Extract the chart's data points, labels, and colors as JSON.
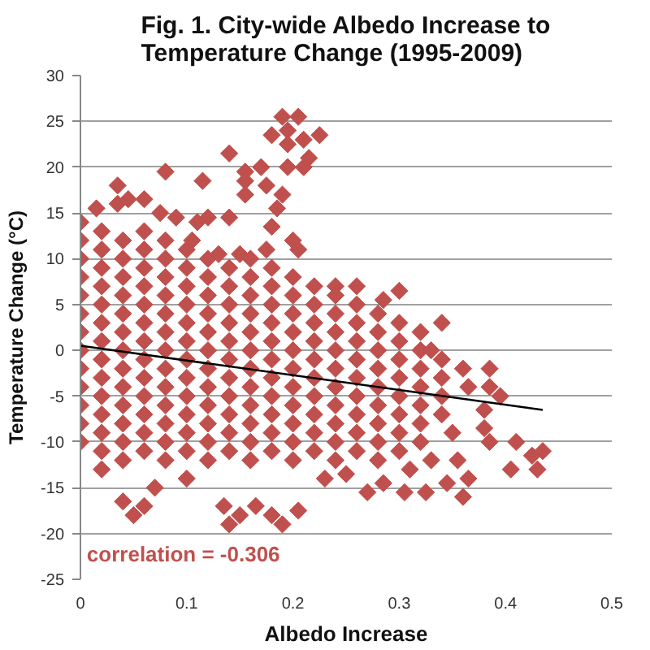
{
  "chart_data": {
    "type": "scatter",
    "title": "Fig. 1. City-wide Albedo Increase to Temperature Change (1995-2009)",
    "xlabel": "Albedo Increase",
    "ylabel": "Temperature Change (°C)",
    "annotations": [
      "correlation = -0.306"
    ],
    "xlim": [
      0,
      0.5
    ],
    "xticks": [
      0,
      0.1,
      0.2,
      0.3,
      0.4,
      0.5
    ],
    "ylim": [
      -25,
      30
    ],
    "yticks": [
      -25,
      -20,
      -15,
      -10,
      -5,
      0,
      5,
      10,
      15,
      20,
      25,
      30
    ],
    "grid": "y",
    "marker": "diamond",
    "series": [
      {
        "color": "#c0504d",
        "x": [
          0,
          0,
          0,
          0,
          0,
          0,
          0,
          0,
          0,
          0,
          0,
          0,
          0,
          0.02,
          0.02,
          0.02,
          0.02,
          0.02,
          0.02,
          0.02,
          0.02,
          0.02,
          0.02,
          0.02,
          0.02,
          0.02,
          0.04,
          0.04,
          0.04,
          0.04,
          0.04,
          0.04,
          0.04,
          0.04,
          0.04,
          0.04,
          0.04,
          0.04,
          0.04,
          0.06,
          0.06,
          0.06,
          0.06,
          0.06,
          0.06,
          0.06,
          0.06,
          0.06,
          0.06,
          0.06,
          0.06,
          0.06,
          0.08,
          0.08,
          0.08,
          0.08,
          0.08,
          0.08,
          0.08,
          0.08,
          0.08,
          0.08,
          0.08,
          0.08,
          0.08,
          0.1,
          0.1,
          0.1,
          0.1,
          0.1,
          0.1,
          0.1,
          0.1,
          0.1,
          0.1,
          0.1,
          0.1,
          0.12,
          0.12,
          0.12,
          0.12,
          0.12,
          0.12,
          0.12,
          0.12,
          0.12,
          0.12,
          0.12,
          0.12,
          0.14,
          0.14,
          0.14,
          0.14,
          0.14,
          0.14,
          0.14,
          0.14,
          0.14,
          0.14,
          0.14,
          0.16,
          0.16,
          0.16,
          0.16,
          0.16,
          0.16,
          0.16,
          0.16,
          0.16,
          0.16,
          0.16,
          0.16,
          0.18,
          0.18,
          0.18,
          0.18,
          0.18,
          0.18,
          0.18,
          0.18,
          0.18,
          0.18,
          0.18,
          0.2,
          0.2,
          0.2,
          0.2,
          0.2,
          0.2,
          0.2,
          0.2,
          0.2,
          0.2,
          0.2,
          0.22,
          0.22,
          0.22,
          0.22,
          0.22,
          0.22,
          0.22,
          0.22,
          0.22,
          0.22,
          0.24,
          0.24,
          0.24,
          0.24,
          0.24,
          0.24,
          0.24,
          0.24,
          0.24,
          0.24,
          0.26,
          0.26,
          0.26,
          0.26,
          0.26,
          0.26,
          0.26,
          0.26,
          0.26,
          0.28,
          0.28,
          0.28,
          0.28,
          0.28,
          0.28,
          0.28,
          0.28,
          0.28,
          0.3,
          0.3,
          0.3,
          0.3,
          0.3,
          0.3,
          0.3,
          0.3,
          0.32,
          0.32,
          0.32,
          0.32,
          0.32,
          0.32,
          0.32,
          0.34,
          0.34,
          0.34,
          0.34,
          0.19,
          0.205,
          0.195,
          0.18,
          0.225,
          0.195,
          0.21,
          0.215,
          0.14,
          0.195,
          0.21,
          0.155,
          0.17,
          0.155,
          0.175,
          0.08,
          0.115,
          0.035,
          0.155,
          0.19,
          0.035,
          0.045,
          0.06,
          0.015,
          0.185,
          0.075,
          0.09,
          0.11,
          0.12,
          0.14,
          0.18,
          0.105,
          0.2,
          0.205,
          0.175,
          0.15,
          0.13,
          0.24,
          0.26,
          0.3,
          0.285,
          0.34,
          0.33,
          0.385,
          0.385,
          0.395,
          0.365,
          0.38,
          0.38,
          0.385,
          0.41,
          0.405,
          0.425,
          0.43,
          0.435,
          0.27,
          0.285,
          0.305,
          0.325,
          0.345,
          0.36,
          0.365,
          0.355,
          0.04,
          0.05,
          0.06,
          0.135,
          0.14,
          0.15,
          0.165,
          0.18,
          0.19,
          0.205,
          0.1,
          0.02,
          0.07,
          0.23,
          0.25,
          0.31,
          0.33,
          0.35,
          0.36
        ],
        "values": [
          14,
          12,
          10,
          8,
          6,
          4,
          2,
          0,
          -2,
          -4,
          -6,
          -8,
          -10,
          13,
          11,
          9,
          7,
          5,
          3,
          1,
          -1,
          -3,
          -5,
          -7,
          -9,
          -11,
          12,
          10,
          8,
          6,
          4,
          2,
          0,
          -2,
          -4,
          -6,
          -8,
          -10,
          -12,
          13,
          11,
          9,
          7,
          5,
          3,
          1,
          -1,
          -3,
          -5,
          -7,
          -9,
          -11,
          12,
          10,
          8,
          6,
          4,
          2,
          0,
          -2,
          -4,
          -6,
          -8,
          -10,
          -12,
          11,
          9,
          7,
          5,
          3,
          1,
          -1,
          -3,
          -5,
          -7,
          -9,
          -11,
          10,
          8,
          6,
          4,
          2,
          0,
          -2,
          -4,
          -6,
          -8,
          -10,
          -12,
          9,
          7,
          5,
          3,
          1,
          -1,
          -3,
          -5,
          -7,
          -9,
          -11,
          10,
          8,
          6,
          4,
          2,
          0,
          -2,
          -4,
          -6,
          -8,
          -10,
          -12,
          9,
          7,
          5,
          3,
          1,
          -1,
          -3,
          -5,
          -7,
          -9,
          -11,
          8,
          6,
          4,
          2,
          0,
          -2,
          -4,
          -6,
          -8,
          -10,
          -12,
          7,
          5,
          3,
          1,
          -1,
          -3,
          -5,
          -7,
          -9,
          -11,
          6,
          4,
          2,
          0,
          -2,
          -4,
          -6,
          -8,
          -10,
          -12,
          5,
          3,
          1,
          -1,
          -3,
          -5,
          -7,
          -9,
          -11,
          4,
          2,
          0,
          -2,
          -4,
          -6,
          -8,
          -10,
          -12,
          3,
          1,
          -1,
          -3,
          -5,
          -7,
          -9,
          -11,
          2,
          0,
          -2,
          -4,
          -6,
          -8,
          -10,
          -1,
          -3,
          -5,
          -7,
          25.5,
          25.5,
          24,
          23.5,
          23.5,
          22.5,
          23,
          21,
          21.5,
          20,
          20,
          19.5,
          20,
          18.5,
          18,
          19.5,
          18.5,
          18,
          17,
          17,
          16,
          16.5,
          16.5,
          15.5,
          15.5,
          15,
          14.5,
          14,
          14.5,
          14.5,
          13.5,
          12,
          12,
          11,
          11,
          10.5,
          10.5,
          7,
          7,
          6.5,
          5.5,
          3,
          0,
          -2,
          -4,
          -5,
          -4,
          -6.5,
          -8.5,
          -10,
          -10,
          -13,
          -11.5,
          -13,
          -11,
          -15.5,
          -14.5,
          -15.5,
          -15.5,
          -14.5,
          -16,
          -14,
          -12,
          -16.5,
          -18,
          -17,
          -17,
          -19,
          -18,
          -17,
          -18,
          -19,
          -17.5,
          -14,
          -13,
          -15,
          -14,
          -13.5,
          -13,
          -12,
          -9,
          -2
        ]
      },
      {
        "type": "line",
        "color": "#000000",
        "marker": "none",
        "line_style": "solid",
        "x": [
          0,
          0.435
        ],
        "values": [
          0.5,
          -6.5
        ]
      }
    ]
  }
}
